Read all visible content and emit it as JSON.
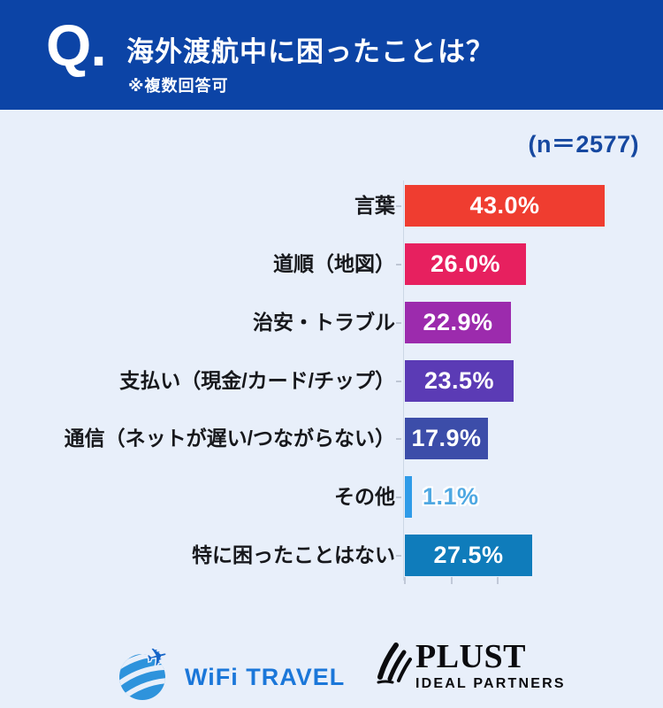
{
  "header": {
    "q_mark": "Q.",
    "title": "海外渡航中に困ったことは？",
    "note": "※複数回答可"
  },
  "sample_label": "(n＝2577)",
  "chart_data": {
    "type": "bar",
    "orientation": "horizontal",
    "title": "海外渡航中に困ったことは？",
    "subtitle": "※複数回答可",
    "sample_size": 2577,
    "sample_size_label": "(n＝2577)",
    "categories": [
      "言葉",
      "道順（地図）",
      "治安・トラブル",
      "支払い（現金/カード/チップ）",
      "通信（ネットが遅い/つながらない）",
      "その他",
      "特に困ったことはない"
    ],
    "values": [
      43.0,
      26.0,
      22.9,
      23.5,
      17.9,
      1.1,
      27.5
    ],
    "value_labels": [
      "43.0%",
      "26.0%",
      "22.9%",
      "23.5%",
      "17.9%",
      "1.1%",
      "27.5%"
    ],
    "bar_colors": [
      "#EF3D30",
      "#E7205F",
      "#9C2BAD",
      "#5B3BB5",
      "#3C4DA9",
      "#2F9BE8",
      "#0F7CBB"
    ],
    "xlim": [
      0,
      45
    ],
    "grid": false,
    "legend": false,
    "value_label_position": "inside-center (outside for values under 3%)"
  },
  "footer": {
    "wifi_travel_label": "WiFi TRAVEL",
    "plust_label": "PLUST",
    "plust_sublabel": "IDEAL PARTNERS"
  },
  "colors": {
    "background": "#E8EFFA",
    "header_bg": "#0C44A6",
    "header_text": "#FFFFFF",
    "sample_label_color": "#1648A0",
    "category_label_color": "#17181C",
    "value_inside_color": "#FFFFFF",
    "value_outside_color": "#4FA8E2",
    "axis_color": "#CCD7E6",
    "wifi_travel_blue": "#1B77D9",
    "plust_black": "#0B0B0E"
  }
}
